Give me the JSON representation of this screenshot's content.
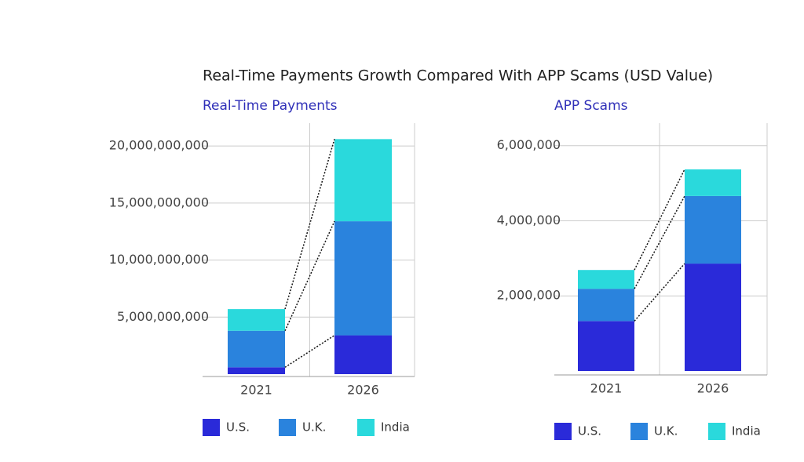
{
  "title": "Real-Time Payments Growth Compared With APP Scams (USD Value)",
  "chart_data": [
    {
      "type": "stacked-bar",
      "title": "Real-Time Payments",
      "categories": [
        "2021",
        "2026"
      ],
      "series": [
        {
          "name": "U.S.",
          "color": "#2a2ad9",
          "values": [
            600000000,
            3400000000
          ]
        },
        {
          "name": "U.K.",
          "color": "#2a83dd",
          "values": [
            3200000000,
            10000000000
          ]
        },
        {
          "name": "India",
          "color": "#2ad9dc",
          "values": [
            1900000000,
            7200000000
          ]
        }
      ],
      "ylim": [
        0,
        22000000000
      ],
      "yticks": [
        {
          "value": 5000000000,
          "label": "5,000,000,000"
        },
        {
          "value": 10000000000,
          "label": "10,000,000,000"
        },
        {
          "value": 15000000000,
          "label": "15,000,000,000"
        },
        {
          "value": 20000000000,
          "label": "20,000,000,000"
        }
      ],
      "grid": true
    },
    {
      "type": "stacked-bar",
      "title": "APP Scams",
      "categories": [
        "2021",
        "2026"
      ],
      "series": [
        {
          "name": "U.S.",
          "color": "#2a2ad9",
          "values": [
            1330000,
            2860000
          ]
        },
        {
          "name": "U.K.",
          "color": "#2a83dd",
          "values": [
            860000,
            1800000
          ]
        },
        {
          "name": "India",
          "color": "#2ad9dc",
          "values": [
            500000,
            710000
          ]
        }
      ],
      "ylim": [
        0,
        6600000
      ],
      "yticks": [
        {
          "value": 2000000,
          "label": "2,000,000"
        },
        {
          "value": 4000000,
          "label": "4,000,000"
        },
        {
          "value": 6000000,
          "label": "6,000,000"
        }
      ],
      "grid": true
    }
  ]
}
